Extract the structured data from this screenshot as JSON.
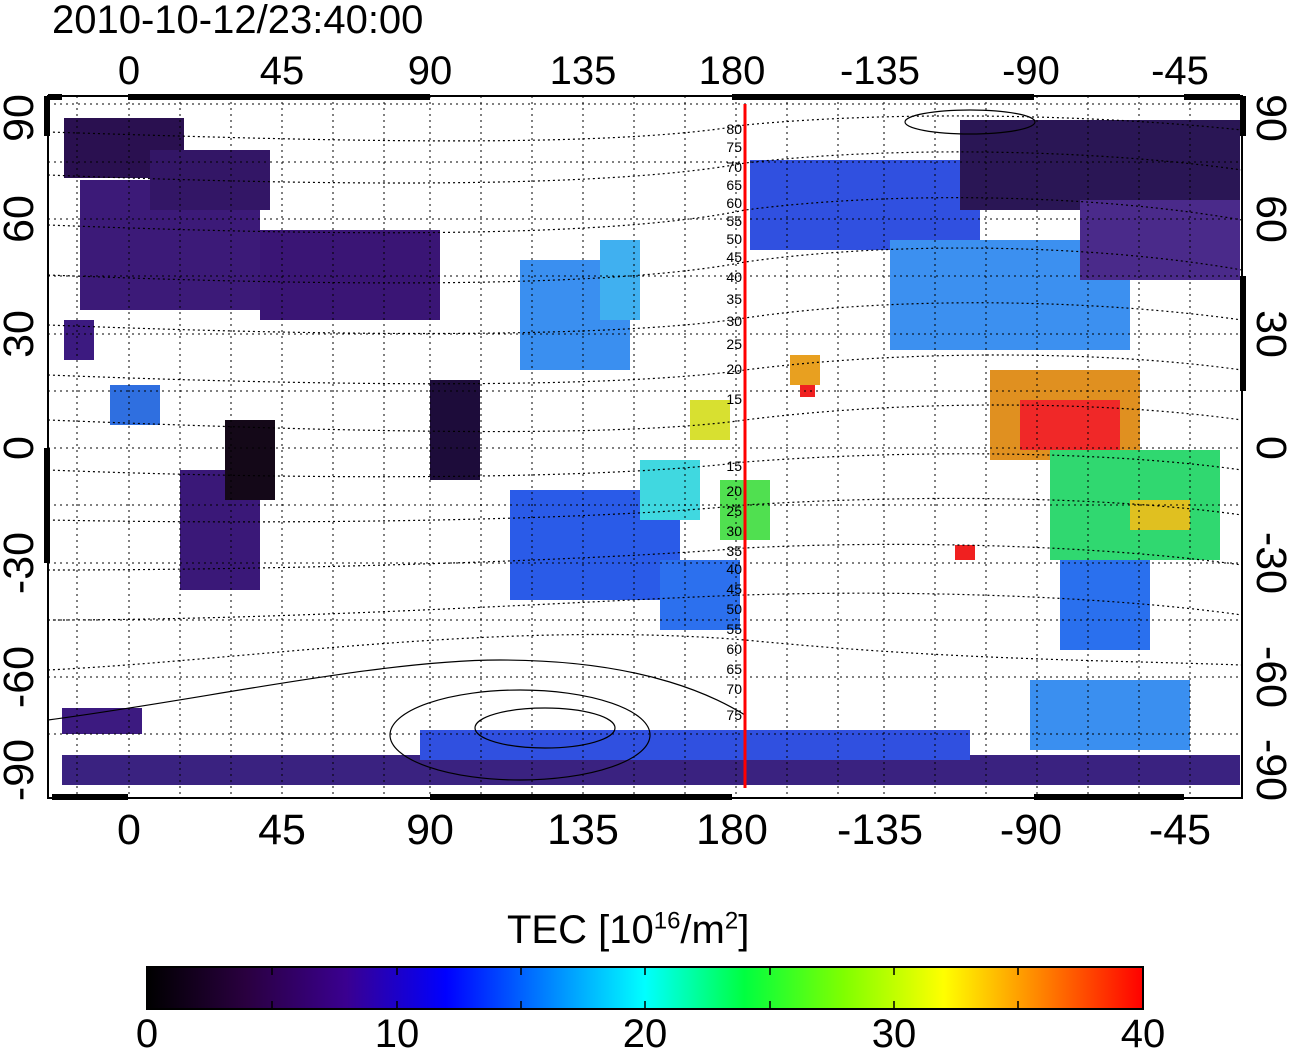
{
  "title": "2010-10-12/23:40:00",
  "map": {
    "x_ticks_top": [
      "0",
      "45",
      "90",
      "135",
      "180",
      "-135",
      "-90",
      "-45"
    ],
    "x_ticks_bottom": [
      "0",
      "45",
      "90",
      "135",
      "180",
      "-135",
      "-90",
      "-45"
    ],
    "y_ticks_left": [
      "90",
      "60",
      "30",
      "0",
      "-30",
      "-60",
      "-90"
    ],
    "y_ticks_right": [
      "90",
      "60",
      "30",
      "0",
      "-30",
      "-60",
      "-90"
    ],
    "contour_labels": [
      "80",
      "75",
      "70",
      "65",
      "60",
      "55",
      "50",
      "45",
      "40",
      "35",
      "30",
      "25",
      "20",
      "15",
      "15",
      "20",
      "25",
      "30",
      "35",
      "40",
      "45",
      "50",
      "55",
      "60",
      "65",
      "70",
      "75"
    ],
    "meridian_line_color": "#ff0000"
  },
  "colorbar": {
    "title_prefix": "TEC  [10",
    "title_exp1": "16",
    "title_mid": "/m",
    "title_exp2": "2",
    "title_suffix": "]",
    "ticks": [
      "0",
      "10",
      "20",
      "30",
      "40"
    ],
    "range": [
      0,
      40
    ],
    "colors": [
      "#000000",
      "#2a0040",
      "#3a0090",
      "#0000ff",
      "#0080ff",
      "#00ffff",
      "#00ff40",
      "#80ff00",
      "#ffff00",
      "#ff8000",
      "#ff0000"
    ]
  }
}
